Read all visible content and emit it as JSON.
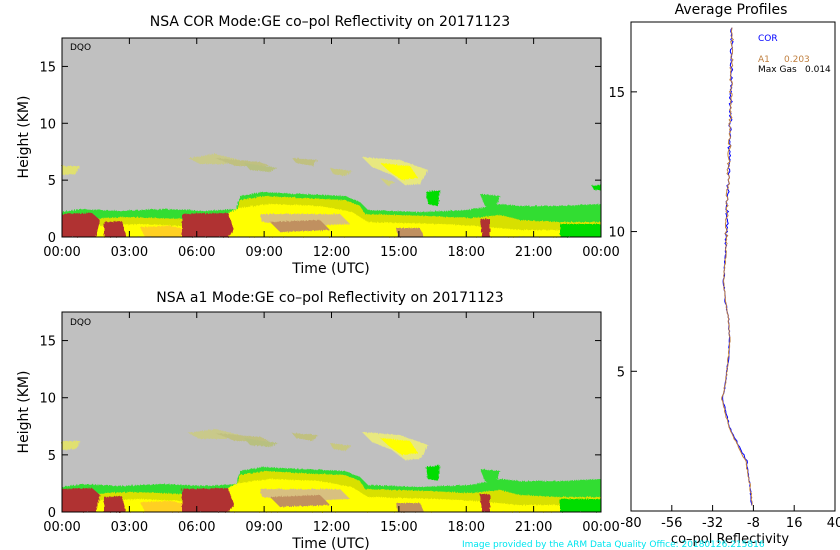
{
  "credit": "Image provided by the ARM Data Quality Office: 20180126.215816",
  "chart_data": [
    {
      "type": "heatmap",
      "title": "NSA COR  Mode:GE  co–pol Reflectivity  on 20171123",
      "tag": "DQO",
      "xlabel": "Time (UTC)",
      "ylabel": "Height (KM)",
      "x_ticks": [
        "00:00",
        "03:00",
        "06:00",
        "09:00",
        "12:00",
        "15:00",
        "18:00",
        "21:00",
        "00:00"
      ],
      "y_ticks": [
        0,
        5,
        10,
        15
      ],
      "xlim_hours": [
        0,
        24
      ],
      "ylim": [
        0,
        17.5
      ],
      "background_color": "#c0c0c0",
      "color_scale": [
        "#c0c0c0",
        "#00dd00",
        "#d8e000",
        "#ffff00",
        "#c09060",
        "#b03030"
      ]
    },
    {
      "type": "heatmap",
      "title": "NSA a1  Mode:GE  co–pol Reflectivity  on 20171123",
      "tag": "DQO",
      "xlabel": "Time (UTC)",
      "ylabel": "Height (KM)",
      "x_ticks": [
        "00:00",
        "03:00",
        "06:00",
        "09:00",
        "12:00",
        "15:00",
        "18:00",
        "21:00",
        "00:00"
      ],
      "y_ticks": [
        0,
        5,
        10,
        15
      ],
      "xlim_hours": [
        0,
        24
      ],
      "ylim": [
        0,
        17.5
      ],
      "background_color": "#c0c0c0",
      "color_scale": [
        "#c0c0c0",
        "#00dd00",
        "#d8e000",
        "#ffff00",
        "#c09060",
        "#b03030"
      ]
    },
    {
      "type": "line",
      "title": "Average Profiles",
      "xlabel": "co–pol Reflectivity",
      "x_ticks": [
        -80,
        -56,
        -32,
        -8,
        16,
        40
      ],
      "xlim": [
        -80,
        40
      ],
      "y_ticks": [
        5,
        10,
        15
      ],
      "ylim": [
        0,
        17.5
      ],
      "legend": {
        "cor": "COR",
        "a1_label": "A1",
        "a1_value": "0.203",
        "maxgas_label": "Max Gas",
        "maxgas_value": "0.014"
      },
      "series": [
        {
          "name": "COR",
          "color": "#0000ff",
          "x": [
            -9,
            -10,
            -12,
            -18,
            -22,
            -24,
            -26,
            -25,
            -24,
            -23,
            -22,
            -22.5,
            -23,
            -24.5,
            -25.5,
            -24,
            -23.5,
            -23,
            -22.5,
            -21.5,
            -21,
            -20.5
          ],
          "y": [
            0.2,
            0.9,
            1.8,
            2.5,
            3.0,
            3.5,
            4.0,
            4.4,
            4.8,
            5.3,
            6.0,
            6.8,
            7.0,
            7.5,
            8.2,
            9.5,
            10.5,
            11.5,
            12.5,
            14.0,
            15.5,
            17.3
          ]
        },
        {
          "name": "A1",
          "color": "#c08040",
          "x": [
            -8.5,
            -10,
            -12.5,
            -18.5,
            -22.5,
            -24.5,
            -26.5,
            -25,
            -24,
            -23,
            -22,
            -22.5,
            -23,
            -24.5,
            -25.5,
            -24,
            -23.5,
            -23,
            -22.5,
            -21.5,
            -21,
            -20.5
          ],
          "y": [
            0.2,
            0.9,
            1.8,
            2.5,
            3.0,
            3.5,
            4.0,
            4.4,
            4.8,
            5.3,
            6.0,
            6.8,
            7.0,
            7.5,
            8.2,
            9.5,
            10.5,
            11.5,
            12.5,
            14.0,
            15.5,
            17.3
          ]
        }
      ]
    }
  ]
}
